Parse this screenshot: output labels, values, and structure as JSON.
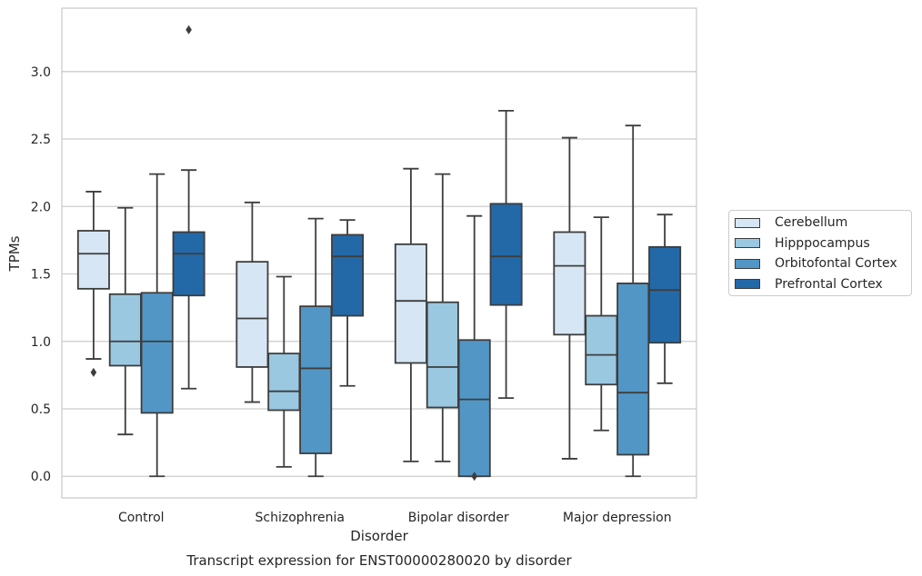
{
  "chart_data": {
    "type": "box",
    "xlabel": "Disorder",
    "ylabel": "TPMs",
    "caption": "Transcript expression for ENST00000280020 by disorder",
    "categories": [
      "Control",
      "Schizophrenia",
      "Bipolar disorder",
      "Major depression"
    ],
    "ylim": [
      -0.16,
      3.47
    ],
    "yticks": [
      "0.0",
      "0.5",
      "1.0",
      "1.5",
      "2.0",
      "2.5",
      "3.0"
    ],
    "ytick_values": [
      0.0,
      0.5,
      1.0,
      1.5,
      2.0,
      2.5,
      3.0
    ],
    "grid": true,
    "legend_position": "right",
    "series": [
      {
        "name": "Cerebellum",
        "color": "#d6e6f4",
        "boxes": [
          {
            "whisker_low": 0.87,
            "q1": 1.39,
            "median": 1.65,
            "q3": 1.82,
            "whisker_high": 2.11,
            "outliers": [
              0.77
            ]
          },
          {
            "whisker_low": 0.55,
            "q1": 0.81,
            "median": 1.17,
            "q3": 1.59,
            "whisker_high": 2.03,
            "outliers": []
          },
          {
            "whisker_low": 0.11,
            "q1": 0.84,
            "median": 1.3,
            "q3": 1.72,
            "whisker_high": 2.28,
            "outliers": []
          },
          {
            "whisker_low": 0.13,
            "q1": 1.05,
            "median": 1.56,
            "q3": 1.81,
            "whisker_high": 2.51,
            "outliers": []
          }
        ]
      },
      {
        "name": "Hipppocampus",
        "color": "#9ac8e0",
        "boxes": [
          {
            "whisker_low": 0.31,
            "q1": 0.82,
            "median": 1.0,
            "q3": 1.35,
            "whisker_high": 1.99,
            "outliers": []
          },
          {
            "whisker_low": 0.07,
            "q1": 0.49,
            "median": 0.63,
            "q3": 0.91,
            "whisker_high": 1.48,
            "outliers": []
          },
          {
            "whisker_low": 0.11,
            "q1": 0.51,
            "median": 0.81,
            "q3": 1.29,
            "whisker_high": 2.24,
            "outliers": []
          },
          {
            "whisker_low": 0.34,
            "q1": 0.68,
            "median": 0.9,
            "q3": 1.19,
            "whisker_high": 1.92,
            "outliers": []
          }
        ]
      },
      {
        "name": "Orbitofontal Cortex",
        "color": "#5296c6",
        "boxes": [
          {
            "whisker_low": 0.0,
            "q1": 0.47,
            "median": 1.0,
            "q3": 1.36,
            "whisker_high": 2.24,
            "outliers": []
          },
          {
            "whisker_low": 0.0,
            "q1": 0.17,
            "median": 0.8,
            "q3": 1.26,
            "whisker_high": 1.91,
            "outliers": []
          },
          {
            "whisker_low": 0.0,
            "q1": 0.0,
            "median": 0.57,
            "q3": 1.01,
            "whisker_high": 1.93,
            "outliers": [
              0.0
            ]
          },
          {
            "whisker_low": 0.0,
            "q1": 0.16,
            "median": 0.62,
            "q3": 1.43,
            "whisker_high": 2.6,
            "outliers": []
          }
        ]
      },
      {
        "name": "Prefrontal Cortex",
        "color": "#2369a8",
        "boxes": [
          {
            "whisker_low": 0.65,
            "q1": 1.34,
            "median": 1.65,
            "q3": 1.81,
            "whisker_high": 2.27,
            "outliers": [
              3.31
            ]
          },
          {
            "whisker_low": 0.67,
            "q1": 1.19,
            "median": 1.63,
            "q3": 1.79,
            "whisker_high": 1.9,
            "outliers": []
          },
          {
            "whisker_low": 0.58,
            "q1": 1.27,
            "median": 1.63,
            "q3": 2.02,
            "whisker_high": 2.71,
            "outliers": []
          },
          {
            "whisker_low": 0.69,
            "q1": 0.99,
            "median": 1.38,
            "q3": 1.7,
            "whisker_high": 1.94,
            "outliers": []
          }
        ]
      }
    ]
  }
}
